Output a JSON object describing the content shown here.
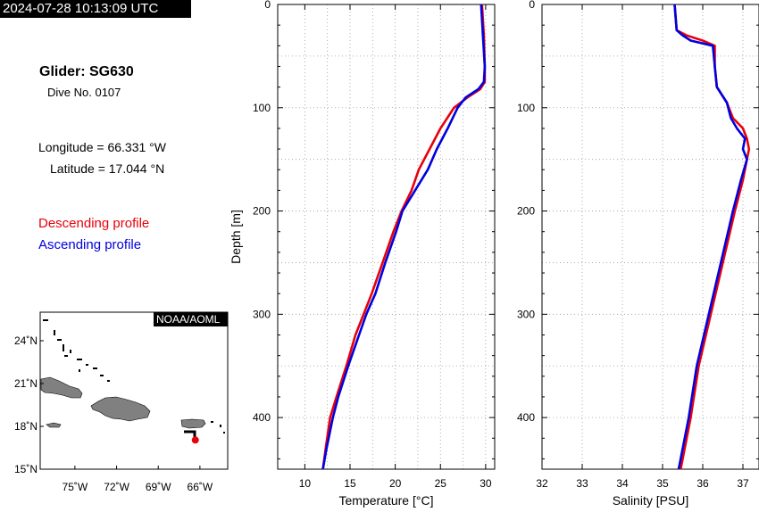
{
  "header": {
    "timestamp": "2024-07-28 10:13:09 UTC"
  },
  "info": {
    "glider": "Glider: SG630",
    "dive": "Dive No. 0107",
    "longitude": "Longitude = 66.331 °W",
    "latitude": "Latitude = 17.044 °N"
  },
  "legend": {
    "descending": "Descending profile",
    "ascending": "Ascending profile",
    "descending_color": "#e8000b",
    "ascending_color": "#0000e0"
  },
  "map": {
    "credit": "NOAA/AOML",
    "lon_labels": [
      "75˚W",
      "72˚W",
      "69˚W",
      "66˚W"
    ],
    "lat_labels": [
      "24˚N",
      "21˚N",
      "18˚N",
      "15˚N"
    ],
    "lon_range": [
      -77.5,
      -64
    ],
    "lat_range": [
      15,
      26
    ],
    "land_color": "#808080",
    "glider_position": [
      -66.331,
      17.044
    ]
  },
  "chart_data": [
    {
      "type": "line",
      "xlabel": "Temperature [°C]",
      "ylabel": "Depth [m]",
      "xlim": [
        7,
        31
      ],
      "ylim": [
        450,
        0
      ],
      "xticks": [
        "10",
        "15",
        "20",
        "25",
        "30"
      ],
      "yticks": [
        "0",
        "100",
        "200",
        "300",
        "400"
      ],
      "grid": true,
      "series": [
        {
          "name": "Descending profile",
          "color": "#e8000b",
          "depth": [
            0,
            30,
            60,
            75,
            82,
            90,
            100,
            120,
            140,
            160,
            180,
            200,
            220,
            250,
            280,
            300,
            320,
            350,
            380,
            400,
            430,
            450
          ],
          "values": [
            29.6,
            29.8,
            29.9,
            29.9,
            29.4,
            28.0,
            26.5,
            25.0,
            23.8,
            22.6,
            21.8,
            20.7,
            19.8,
            18.6,
            17.4,
            16.5,
            15.6,
            14.6,
            13.5,
            12.8,
            12.3,
            12.0
          ]
        },
        {
          "name": "Ascending profile",
          "color": "#0000e0",
          "depth": [
            0,
            30,
            60,
            75,
            82,
            90,
            100,
            120,
            140,
            160,
            180,
            200,
            220,
            250,
            280,
            300,
            320,
            350,
            380,
            400,
            430,
            450
          ],
          "values": [
            29.5,
            29.7,
            29.9,
            29.8,
            29.2,
            27.8,
            26.9,
            25.8,
            24.6,
            23.6,
            22.2,
            20.8,
            20.1,
            18.9,
            17.8,
            16.8,
            16.0,
            14.8,
            13.7,
            13.1,
            12.4,
            12.0
          ]
        }
      ]
    },
    {
      "type": "line",
      "xlabel": "Salinity [PSU]",
      "xlim": [
        32,
        37.4
      ],
      "ylim": [
        450,
        0
      ],
      "xticks": [
        "32",
        "33",
        "34",
        "35",
        "36",
        "37"
      ],
      "yticks": [
        "0",
        "100",
        "200",
        "300",
        "400"
      ],
      "grid": true,
      "series": [
        {
          "name": "Descending profile",
          "color": "#e8000b",
          "depth": [
            0,
            25,
            30,
            35,
            40,
            60,
            80,
            95,
            110,
            120,
            130,
            140,
            150,
            170,
            200,
            250,
            300,
            350,
            400,
            450
          ],
          "values": [
            35.3,
            35.35,
            35.6,
            36.0,
            36.3,
            36.3,
            36.35,
            36.6,
            36.75,
            37.0,
            37.1,
            37.15,
            37.1,
            37.0,
            36.8,
            36.5,
            36.2,
            35.9,
            35.7,
            35.45
          ]
        },
        {
          "name": "Ascending profile",
          "color": "#0000e0",
          "depth": [
            0,
            25,
            30,
            35,
            40,
            60,
            80,
            95,
            110,
            120,
            130,
            140,
            150,
            170,
            200,
            250,
            300,
            350,
            400,
            450
          ],
          "values": [
            35.3,
            35.35,
            35.5,
            35.7,
            36.25,
            36.3,
            36.35,
            36.6,
            36.7,
            36.85,
            37.05,
            37.0,
            37.1,
            36.95,
            36.75,
            36.45,
            36.15,
            35.85,
            35.65,
            35.4
          ]
        }
      ]
    }
  ]
}
